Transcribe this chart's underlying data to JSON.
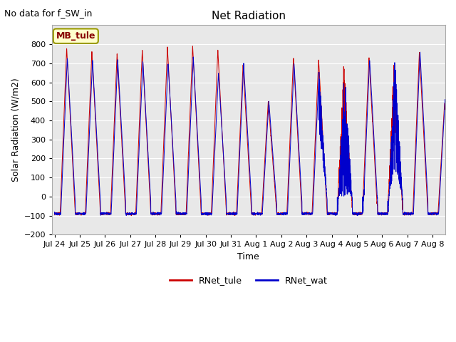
{
  "title": "Net Radiation",
  "xlabel": "Time",
  "ylabel": "Solar Radiation (W/m2)",
  "annotation": "No data for f_SW_in",
  "legend_label": "MB_tule",
  "line1_label": "RNet_tule",
  "line2_label": "RNet_wat",
  "line1_color": "#cc0000",
  "line2_color": "#0000cc",
  "ylim": [
    -200,
    900
  ],
  "yticks": [
    -200,
    -100,
    0,
    100,
    200,
    300,
    400,
    500,
    600,
    700,
    800
  ],
  "background_color": "#e8e8e8",
  "fig_background": "#ffffff",
  "num_days": 15.5,
  "n_points": 4464,
  "night_value": -90,
  "title_fontsize": 11,
  "label_fontsize": 9,
  "tick_fontsize": 8,
  "annotation_fontsize": 9,
  "tick_labels": [
    "Jul 24",
    "Jul 25",
    "Jul 26",
    "Jul 27",
    "Jul 28",
    "Jul 29",
    "Jul 30",
    "Jul 31",
    "Aug 1",
    "Aug 2",
    "Aug 3",
    "Aug 4",
    "Aug 5",
    "Aug 6",
    "Aug 7",
    "Aug 8"
  ],
  "peaks_tule": [
    780,
    760,
    750,
    770,
    785,
    790,
    770,
    690,
    500,
    730,
    720,
    725,
    730,
    755,
    760,
    490
  ],
  "peaks_wat": [
    730,
    715,
    720,
    710,
    700,
    730,
    650,
    700,
    500,
    700,
    670,
    700,
    720,
    755,
    760,
    520
  ]
}
